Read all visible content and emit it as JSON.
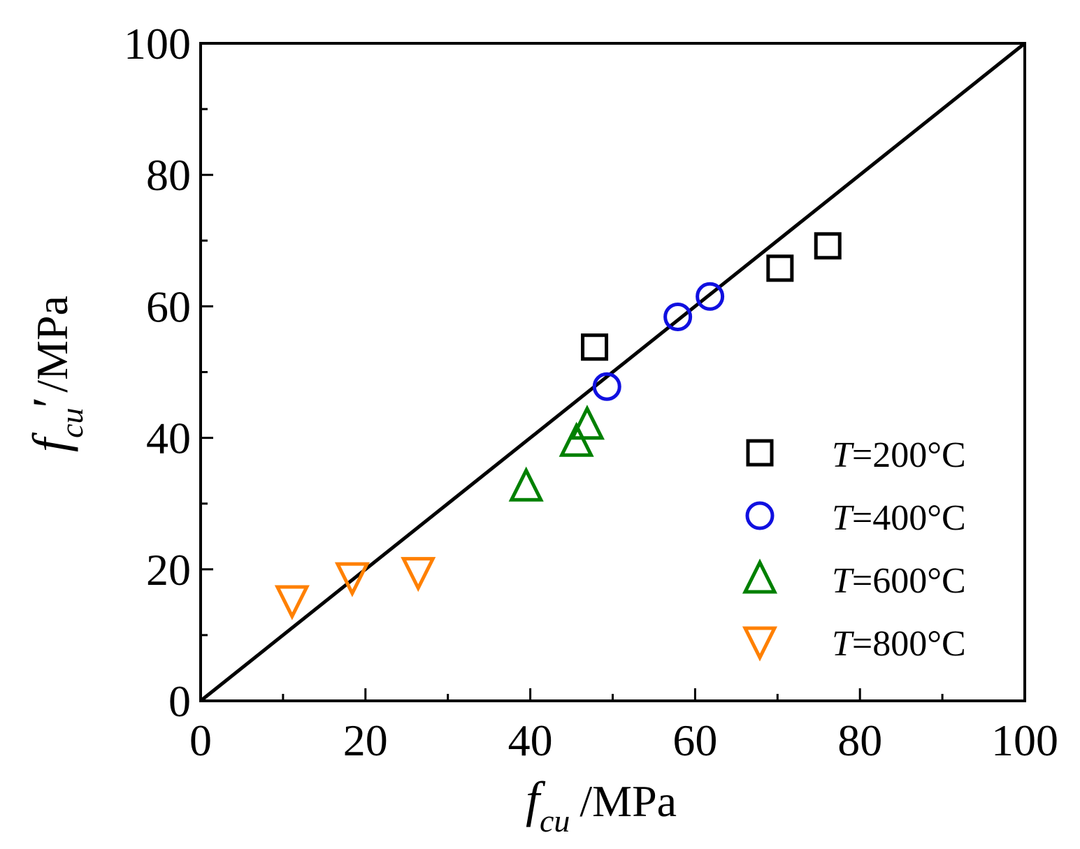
{
  "chart_data": {
    "type": "scatter",
    "xlabel": {
      "var": "f",
      "sub": "cu",
      "prime": "",
      "unit": "/MPa"
    },
    "ylabel": {
      "var": "f",
      "sub": "cu",
      "prime": "′",
      "unit": "/MPa"
    },
    "xlim": [
      0,
      100
    ],
    "ylim": [
      0,
      100
    ],
    "xticks": [
      0,
      20,
      40,
      60,
      80,
      100
    ],
    "yticks": [
      0,
      20,
      40,
      60,
      80,
      100
    ],
    "x_minor_ticks": [
      10,
      30,
      50,
      70,
      90
    ],
    "y_minor_ticks": [
      10,
      30,
      50,
      70,
      90
    ],
    "reference_line": {
      "x": [
        0,
        100
      ],
      "y": [
        0,
        100
      ],
      "color": "#000000"
    },
    "legend_position": "right",
    "series": [
      {
        "name": "T=200°C",
        "var": "T",
        "rest": "=200°C",
        "marker": "square",
        "color": "#000000",
        "points": [
          [
            47.8,
            53.8
          ],
          [
            70.3,
            65.8
          ],
          [
            76.1,
            69.2
          ]
        ]
      },
      {
        "name": "T=400°C",
        "var": "T",
        "rest": "=400°C",
        "marker": "circle",
        "color": "#1010e0",
        "points": [
          [
            49.3,
            47.8
          ],
          [
            57.9,
            58.4
          ],
          [
            61.8,
            61.5
          ]
        ]
      },
      {
        "name": "T=600°C",
        "var": "T",
        "rest": "=600°C",
        "marker": "triangle-up",
        "color": "#008000",
        "points": [
          [
            39.5,
            32.6
          ],
          [
            45.6,
            39.4
          ],
          [
            46.9,
            42.0
          ]
        ]
      },
      {
        "name": "T=800°C",
        "var": "T",
        "rest": "=800°C",
        "marker": "triangle-down",
        "color": "#ff8000",
        "points": [
          [
            11.1,
            15.3
          ],
          [
            18.4,
            18.8
          ],
          [
            26.4,
            19.6
          ]
        ]
      }
    ]
  }
}
